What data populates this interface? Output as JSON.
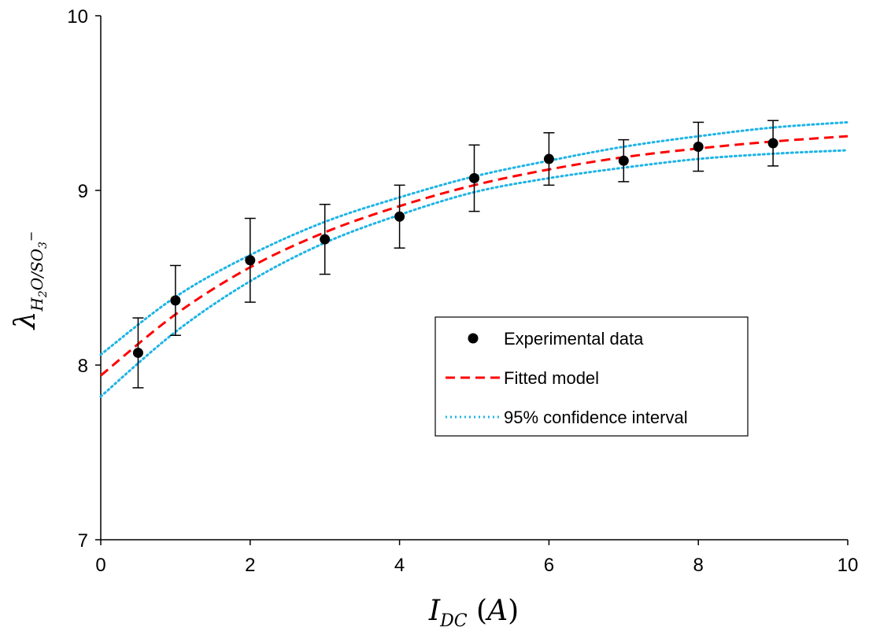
{
  "chart_data": {
    "type": "scatter",
    "xlabel": "I_DC (A)",
    "ylabel": "λ_H2O/SO3⁻",
    "xlim": [
      0,
      10
    ],
    "ylim": [
      7,
      10
    ],
    "x_ticks": [
      0,
      2,
      4,
      6,
      8,
      10
    ],
    "y_ticks": [
      7,
      8,
      9,
      10
    ],
    "x_tick_labels": [
      "0",
      "2",
      "4",
      "6",
      "8",
      "10"
    ],
    "y_tick_labels": [
      "7",
      "8",
      "9",
      "10"
    ],
    "grid": false,
    "legend_position": "center-right",
    "series": [
      {
        "name": "Experimental data",
        "kind": "points",
        "color": "#000000",
        "x": [
          0.5,
          1,
          2,
          3,
          4,
          5,
          6,
          7,
          8,
          9
        ],
        "y": [
          8.07,
          8.37,
          8.6,
          8.72,
          8.85,
          9.07,
          9.18,
          9.17,
          9.25,
          9.27
        ],
        "error": [
          0.2,
          0.2,
          0.24,
          0.2,
          0.18,
          0.19,
          0.15,
          0.12,
          0.14,
          0.13
        ]
      },
      {
        "name": "Fitted model",
        "kind": "line",
        "style": "dashed",
        "color": "#ff0000",
        "x": [
          0,
          1,
          2,
          3,
          4,
          5,
          6,
          7,
          8,
          9,
          10
        ],
        "y": [
          7.94,
          8.29,
          8.56,
          8.76,
          8.91,
          9.03,
          9.12,
          9.19,
          9.24,
          9.28,
          9.31
        ]
      },
      {
        "name": "95% confidence interval",
        "kind": "line",
        "style": "dotted",
        "color": "#1eb4e6",
        "x": [
          0,
          1,
          2,
          3,
          4,
          5,
          6,
          7,
          8,
          9,
          10
        ],
        "y": [
          8.06,
          8.39,
          8.63,
          8.82,
          8.96,
          9.08,
          9.17,
          9.25,
          9.31,
          9.36,
          9.39
        ]
      },
      {
        "name": "",
        "kind": "line",
        "style": "dotted",
        "color": "#1eb4e6",
        "x": [
          0,
          1,
          2,
          3,
          4,
          5,
          6,
          7,
          8,
          9,
          10
        ],
        "y": [
          7.82,
          8.19,
          8.48,
          8.7,
          8.86,
          8.99,
          9.07,
          9.13,
          9.18,
          9.21,
          9.23
        ]
      }
    ]
  }
}
